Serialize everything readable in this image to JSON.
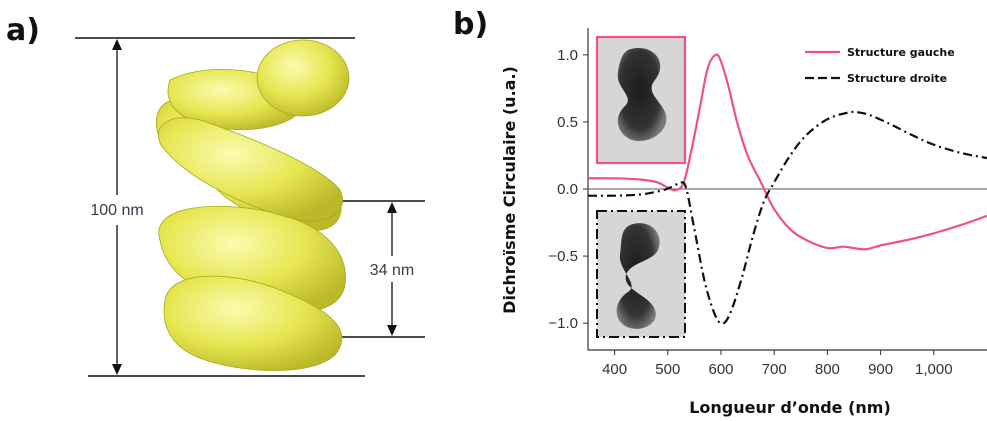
{
  "panel_a": {
    "label": "a)",
    "total_height_label": "100 nm",
    "pitch_label": "34 nm",
    "helix_color": "#e6e650"
  },
  "panel_b": {
    "label": "b)"
  },
  "chart_data": {
    "type": "line",
    "xlabel": "Longueur d’onde (nm)",
    "ylabel": "Dichroïsme Circulaire (u.a.)",
    "xlim": [
      350,
      1100
    ],
    "ylim": [
      -1.2,
      1.2
    ],
    "x_ticks": [
      400,
      500,
      600,
      700,
      800,
      900,
      1000
    ],
    "x_tick_labels": [
      "400",
      "500",
      "600",
      "700",
      "800",
      "900",
      "1,000"
    ],
    "y_ticks": [
      1.0,
      0.5,
      0.0,
      -0.5,
      -1.0
    ],
    "y_tick_labels": [
      "1.0",
      "0.5",
      "0.0",
      "−0.5",
      "−1.0"
    ],
    "legend_position": "top-right",
    "zero_line": true,
    "series": [
      {
        "name": "Structure gauche",
        "color": "#f0508a",
        "style": "solid",
        "x": [
          350,
          400,
          450,
          480,
          500,
          515,
          530,
          545,
          560,
          575,
          590,
          600,
          615,
          630,
          650,
          675,
          700,
          730,
          760,
          800,
          830,
          870,
          900,
          950,
          1000,
          1050,
          1100
        ],
        "y": [
          0.08,
          0.08,
          0.07,
          0.05,
          0.01,
          -0.01,
          0.05,
          0.3,
          0.6,
          0.9,
          1.0,
          0.95,
          0.75,
          0.5,
          0.25,
          0.05,
          -0.15,
          -0.3,
          -0.38,
          -0.44,
          -0.43,
          -0.45,
          -0.42,
          -0.38,
          -0.33,
          -0.27,
          -0.2
        ]
      },
      {
        "name": "Structure droite",
        "color": "#111111",
        "style": "dashdot",
        "x": [
          350,
          400,
          450,
          490,
          510,
          525,
          535,
          550,
          570,
          590,
          605,
          620,
          640,
          660,
          680,
          700,
          730,
          760,
          800,
          840,
          860,
          880,
          920,
          960,
          1000,
          1050,
          1100
        ],
        "y": [
          -0.05,
          -0.05,
          -0.04,
          -0.01,
          0.02,
          0.05,
          0.0,
          -0.3,
          -0.7,
          -0.95,
          -1.0,
          -0.9,
          -0.65,
          -0.35,
          -0.1,
          0.05,
          0.25,
          0.4,
          0.52,
          0.57,
          0.57,
          0.55,
          0.48,
          0.4,
          0.33,
          0.27,
          0.23
        ]
      }
    ]
  }
}
